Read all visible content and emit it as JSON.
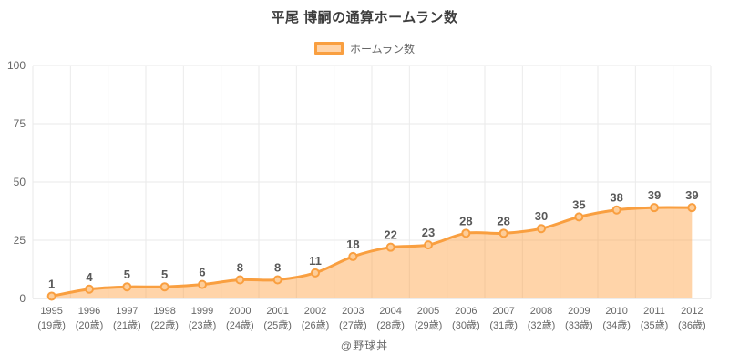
{
  "chart_data": {
    "type": "area",
    "title": "平尾 博嗣の通算ホームラン数",
    "legend": "ホームラン数",
    "footer": "@野球丼",
    "categories": [
      {
        "year": "1995",
        "age": "(19歳)"
      },
      {
        "year": "1996",
        "age": "(20歳)"
      },
      {
        "year": "1997",
        "age": "(21歳)"
      },
      {
        "year": "1998",
        "age": "(22歳)"
      },
      {
        "year": "1999",
        "age": "(23歳)"
      },
      {
        "year": "2000",
        "age": "(24歳)"
      },
      {
        "year": "2001",
        "age": "(25歳)"
      },
      {
        "year": "2002",
        "age": "(26歳)"
      },
      {
        "year": "2003",
        "age": "(27歳)"
      },
      {
        "year": "2004",
        "age": "(28歳)"
      },
      {
        "year": "2005",
        "age": "(29歳)"
      },
      {
        "year": "2006",
        "age": "(30歳)"
      },
      {
        "year": "2007",
        "age": "(31歳)"
      },
      {
        "year": "2008",
        "age": "(32歳)"
      },
      {
        "year": "2009",
        "age": "(33歳)"
      },
      {
        "year": "2010",
        "age": "(34歳)"
      },
      {
        "year": "2011",
        "age": "(35歳)"
      },
      {
        "year": "2012",
        "age": "(36歳)"
      }
    ],
    "values": [
      1,
      4,
      5,
      5,
      6,
      8,
      8,
      11,
      18,
      22,
      23,
      28,
      28,
      30,
      35,
      38,
      39,
      39
    ],
    "ylim": [
      0,
      100
    ],
    "yticks": [
      0,
      25,
      50,
      75,
      100
    ],
    "grid": "on",
    "legend_position": "top",
    "colors": {
      "line": "#f99f40",
      "area_fill": "rgba(255,159,64,0.45)",
      "point_fill": "#fdcd99",
      "point_stroke": "#f99f40",
      "grid_line": "#eaeaea",
      "axis_line": "#d9d9d9",
      "tick_text": "#666666",
      "value_label": "#595959",
      "title_text": "#3d3d3d"
    }
  }
}
